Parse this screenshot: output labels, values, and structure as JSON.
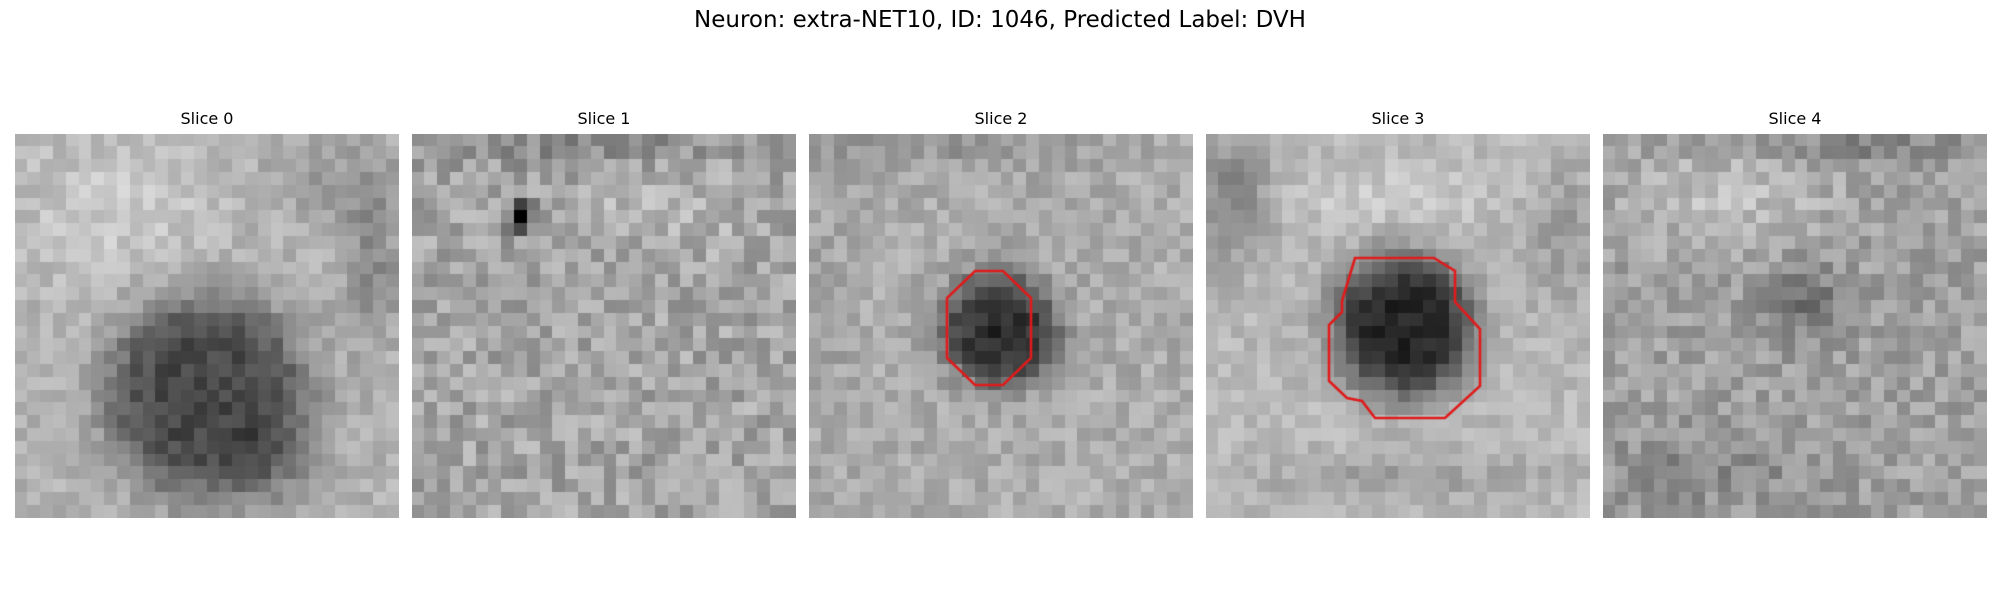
{
  "figure": {
    "suptitle": "Neuron: extra-NET10, ID: 1046, Predicted Label: DVH"
  },
  "panels": [
    {
      "title": "Slice 0",
      "contour": false
    },
    {
      "title": "Slice 1",
      "contour": false
    },
    {
      "title": "Slice 2",
      "contour": true
    },
    {
      "title": "Slice 3",
      "contour": true
    },
    {
      "title": "Slice 4",
      "contour": false
    }
  ],
  "colors": {
    "contour": "#e01b1b",
    "background": "#ffffff"
  }
}
